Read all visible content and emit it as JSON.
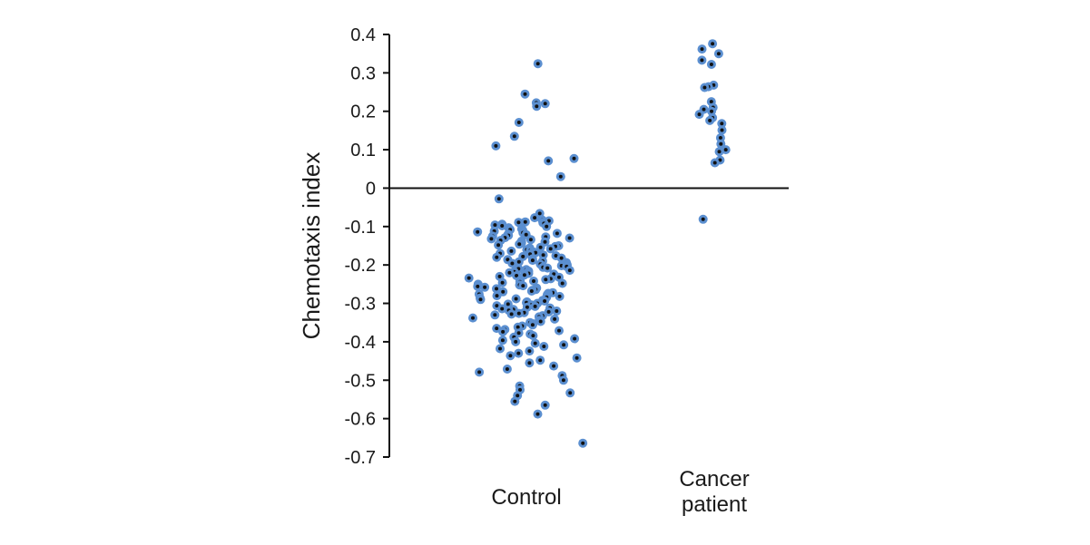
{
  "chart_data": {
    "type": "scatter",
    "title": "",
    "xlabel": "",
    "ylabel": "Chemotaxis index",
    "ylim": [
      -0.7,
      0.4
    ],
    "yticks": [
      0.4,
      0.3,
      0.2,
      0.1,
      0,
      -0.1,
      -0.2,
      -0.3,
      -0.4,
      -0.5,
      -0.6,
      -0.7
    ],
    "ytick_labels": [
      "0.4",
      "0.3",
      "0.2",
      "0.1",
      "0",
      "-0.1",
      "-0.2",
      "-0.3",
      "-0.4",
      "-0.5",
      "-0.6",
      "-0.7"
    ],
    "zero_line": true,
    "grid": false,
    "legend": "none",
    "categories": [
      "Control",
      "Cancer patient"
    ],
    "category_label_lines": [
      [
        "Control"
      ],
      [
        "Cancer",
        "patient"
      ]
    ],
    "marker_fill": "#5b8fd0",
    "marker_center": "#111111",
    "series": [
      {
        "category": "Control",
        "values": [
          0.324,
          0.245,
          0.222,
          0.22,
          0.213,
          0.171,
          0.135,
          0.11,
          0.077,
          0.071,
          0.03,
          -0.028,
          -0.066,
          -0.077,
          -0.083,
          -0.085,
          -0.088,
          -0.089,
          -0.09,
          -0.092,
          -0.094,
          -0.096,
          -0.098,
          -0.1,
          -0.103,
          -0.106,
          -0.108,
          -0.11,
          -0.112,
          -0.114,
          -0.116,
          -0.118,
          -0.12,
          -0.121,
          -0.123,
          -0.125,
          -0.127,
          -0.129,
          -0.13,
          -0.132,
          -0.134,
          -0.136,
          -0.138,
          -0.14,
          -0.142,
          -0.144,
          -0.146,
          -0.148,
          -0.15,
          -0.152,
          -0.154,
          -0.156,
          -0.158,
          -0.16,
          -0.162,
          -0.164,
          -0.166,
          -0.168,
          -0.17,
          -0.172,
          -0.174,
          -0.176,
          -0.178,
          -0.18,
          -0.182,
          -0.184,
          -0.186,
          -0.188,
          -0.19,
          -0.192,
          -0.194,
          -0.196,
          -0.198,
          -0.2,
          -0.202,
          -0.204,
          -0.206,
          -0.208,
          -0.21,
          -0.212,
          -0.214,
          -0.216,
          -0.218,
          -0.22,
          -0.222,
          -0.224,
          -0.226,
          -0.228,
          -0.23,
          -0.232,
          -0.234,
          -0.236,
          -0.238,
          -0.24,
          -0.242,
          -0.244,
          -0.246,
          -0.248,
          -0.25,
          -0.252,
          -0.254,
          -0.256,
          -0.258,
          -0.26,
          -0.262,
          -0.264,
          -0.266,
          -0.268,
          -0.27,
          -0.272,
          -0.274,
          -0.276,
          -0.278,
          -0.28,
          -0.282,
          -0.284,
          -0.286,
          -0.288,
          -0.29,
          -0.292,
          -0.294,
          -0.296,
          -0.298,
          -0.3,
          -0.302,
          -0.304,
          -0.306,
          -0.308,
          -0.31,
          -0.312,
          -0.314,
          -0.316,
          -0.318,
          -0.32,
          -0.322,
          -0.324,
          -0.326,
          -0.328,
          -0.33,
          -0.332,
          -0.335,
          -0.338,
          -0.341,
          -0.344,
          -0.347,
          -0.35,
          -0.353,
          -0.356,
          -0.359,
          -0.362,
          -0.365,
          -0.368,
          -0.371,
          -0.374,
          -0.377,
          -0.38,
          -0.384,
          -0.388,
          -0.392,
          -0.396,
          -0.4,
          -0.404,
          -0.408,
          -0.412,
          -0.418,
          -0.424,
          -0.43,
          -0.436,
          -0.442,
          -0.448,
          -0.455,
          -0.463,
          -0.471,
          -0.479,
          -0.488,
          -0.5,
          -0.515,
          -0.525,
          -0.533,
          -0.54,
          -0.555,
          -0.565,
          -0.588,
          -0.664
        ]
      },
      {
        "category": "Cancer patient",
        "values": [
          0.376,
          0.362,
          0.35,
          0.333,
          0.322,
          0.268,
          0.264,
          0.262,
          0.225,
          0.21,
          0.205,
          0.2,
          0.192,
          0.183,
          0.176,
          0.168,
          0.151,
          0.131,
          0.115,
          0.1,
          0.095,
          0.073,
          0.066,
          -0.081
        ]
      }
    ]
  }
}
